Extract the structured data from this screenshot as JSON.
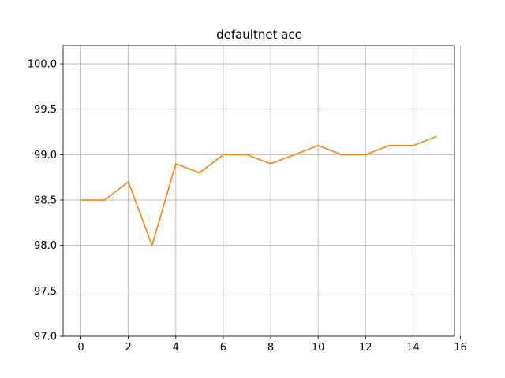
{
  "chart_data": {
    "type": "line",
    "title": "defaultnet acc",
    "xlabel": "",
    "ylabel": "",
    "xlim": [
      -0.75,
      15.75
    ],
    "ylim": [
      97.0,
      100.2
    ],
    "x_ticks": [
      0,
      2,
      4,
      6,
      8,
      10,
      12,
      14,
      16
    ],
    "y_ticks": [
      97.0,
      97.5,
      98.0,
      98.5,
      99.0,
      99.5,
      100.0
    ],
    "x_tick_labels": [
      "0",
      "2",
      "4",
      "6",
      "8",
      "10",
      "12",
      "14",
      "16"
    ],
    "y_tick_labels": [
      "97.0",
      "97.5",
      "98.0",
      "98.5",
      "99.0",
      "99.5",
      "100.0"
    ],
    "grid": true,
    "series": [
      {
        "color": "#ff7f0e",
        "x": [
          0,
          1,
          2,
          3,
          4,
          5,
          6,
          7,
          8,
          9,
          10,
          11,
          12,
          13,
          14,
          15
        ],
        "y": [
          98.5,
          98.5,
          98.7,
          98.0,
          98.9,
          98.8,
          99.0,
          99.0,
          98.9,
          99.0,
          99.1,
          99.0,
          99.0,
          99.1,
          99.1,
          99.2
        ]
      }
    ]
  }
}
